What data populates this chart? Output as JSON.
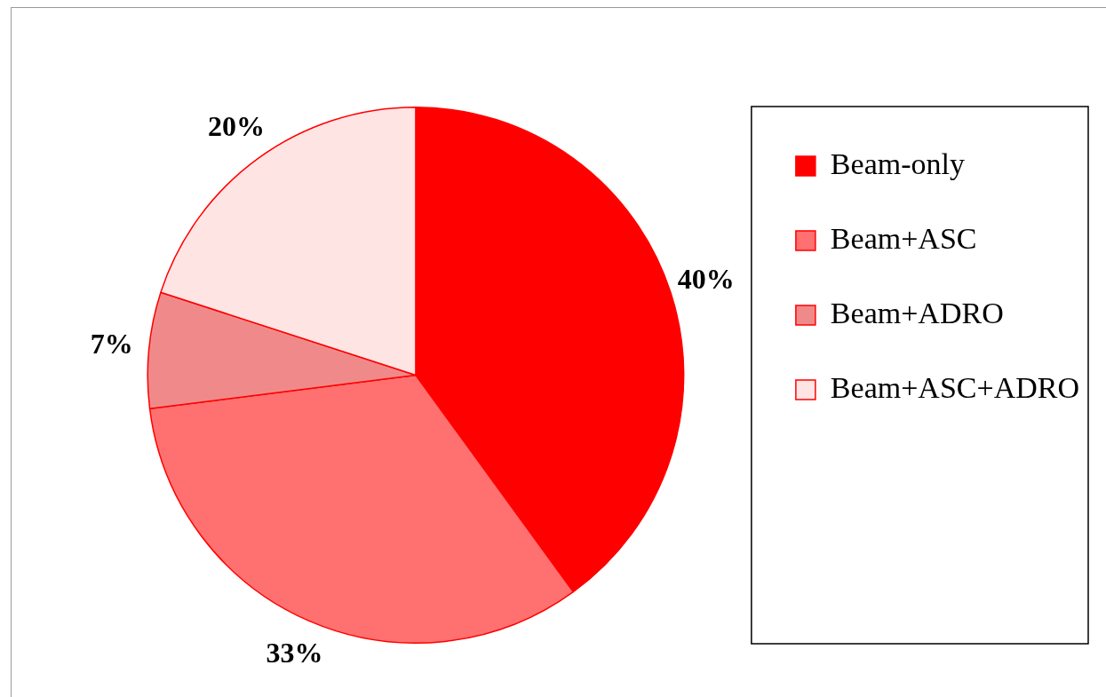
{
  "chart_data": {
    "type": "pie",
    "categories": [
      "Beam-only",
      "Beam+ASC",
      "Beam+ADRO",
      "Beam+ASC+ADRO"
    ],
    "values": [
      40,
      33,
      7,
      20
    ],
    "colors": [
      "#ff0000",
      "#ff7070",
      "#f08a8a",
      "#ffe4e4"
    ],
    "value_labels": [
      "40%",
      "33%",
      "7%",
      "20%"
    ],
    "legend": "right"
  }
}
